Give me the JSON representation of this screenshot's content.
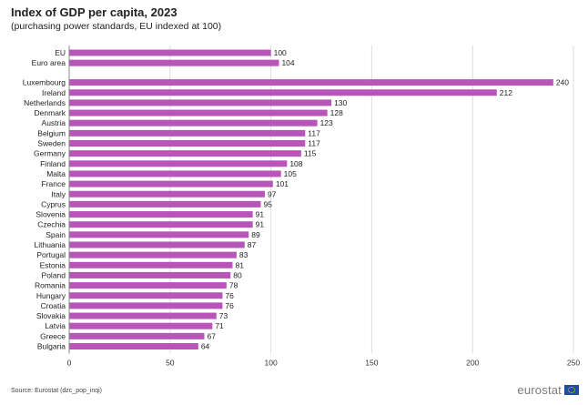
{
  "chart_data": {
    "type": "bar",
    "orientation": "horizontal",
    "title": "Index of GDP per capita, 2023",
    "subtitle": "(purchasing power standards, EU indexed at 100)",
    "groups": [
      {
        "categories": [
          "EU",
          "Euro area"
        ],
        "values": [
          100,
          104
        ]
      },
      {
        "categories": [
          "Luxembourg",
          "Ireland",
          "Netherlands",
          "Denmark",
          "Austria",
          "Belgium",
          "Sweden",
          "Germany",
          "Finland",
          "Malta",
          "France",
          "Italy",
          "Cyprus",
          "Slovenia",
          "Czechia",
          "Spain",
          "Lithuania",
          "Portugal",
          "Estonia",
          "Poland",
          "Romania",
          "Hungary",
          "Croatia",
          "Slovakia",
          "Latvia",
          "Greece",
          "Bulgaria"
        ],
        "values": [
          240,
          212,
          130,
          128,
          123,
          117,
          117,
          115,
          108,
          105,
          101,
          97,
          95,
          91,
          91,
          89,
          87,
          83,
          81,
          80,
          78,
          76,
          76,
          73,
          71,
          67,
          64
        ]
      }
    ],
    "xlim": [
      0,
      250
    ],
    "xticks": [
      0,
      50,
      100,
      150,
      200,
      250
    ],
    "grid": "vertical",
    "bar_color": "#b855b8",
    "source": "Source: Eurostat (dzc_pop_inqi)"
  },
  "branding": {
    "logo_text": "eurostat",
    "flag_color": "#1f4e9f"
  }
}
